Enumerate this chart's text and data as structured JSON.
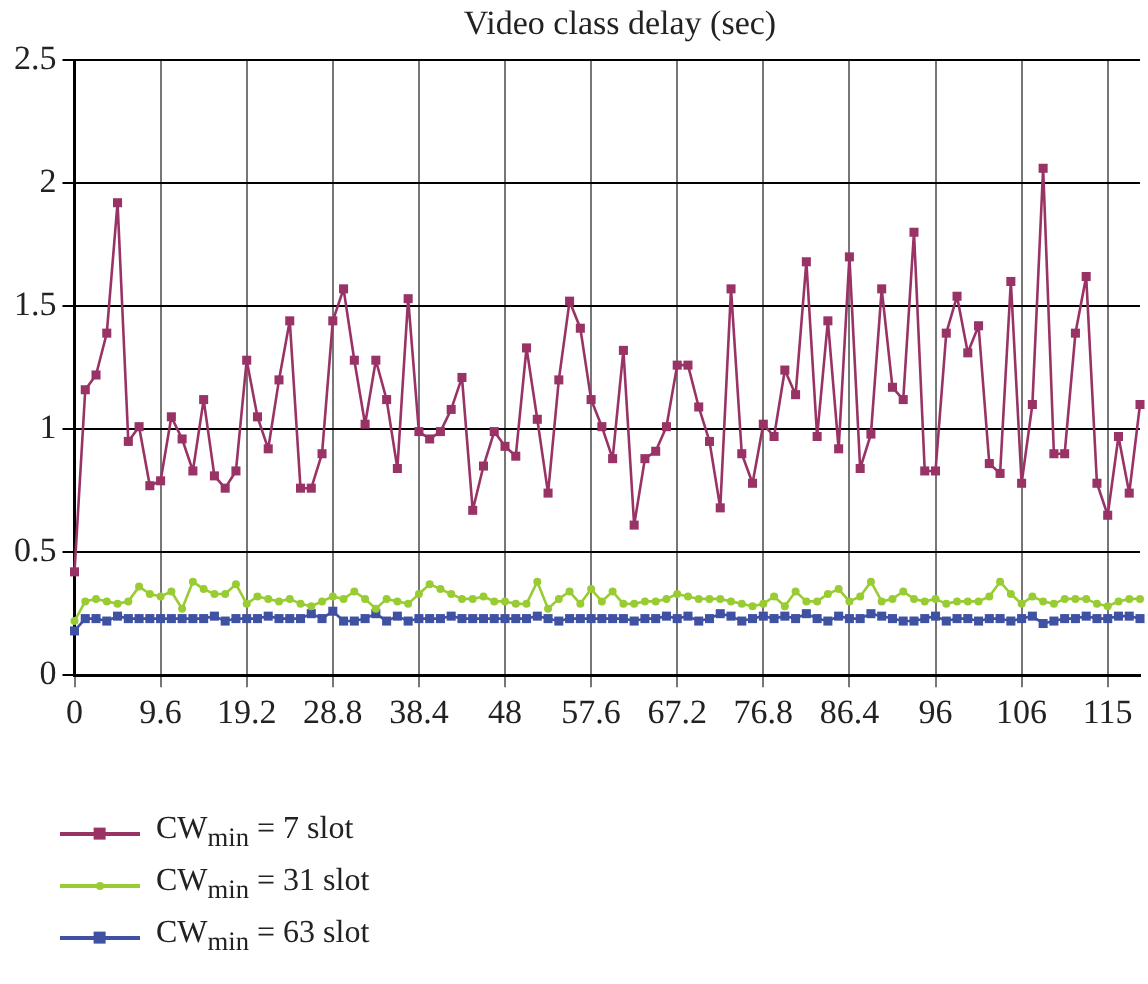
{
  "chart_data": {
    "type": "line",
    "title": "Video class delay (sec)",
    "x": [
      0,
      1.2,
      2.4,
      3.6,
      4.8,
      6,
      7.2,
      8.4,
      9.6,
      10.8,
      12,
      13.2,
      14.4,
      15.6,
      16.8,
      18,
      19.2,
      20.4,
      21.6,
      22.8,
      24,
      25.2,
      26.4,
      27.6,
      28.8,
      30,
      31.2,
      32.4,
      33.6,
      34.8,
      36,
      37.2,
      38.4,
      39.6,
      40.8,
      42,
      43.2,
      44.4,
      45.6,
      46.8,
      48,
      49.2,
      50.4,
      51.6,
      52.8,
      54,
      55.2,
      56.4,
      57.6,
      58.8,
      60,
      61.2,
      62.4,
      63.6,
      64.8,
      66,
      67.2,
      68.4,
      69.6,
      70.8,
      72,
      73.2,
      74.4,
      75.6,
      76.8,
      78,
      79.2,
      80.4,
      81.6,
      82.8,
      84,
      85.2,
      86.4,
      87.6,
      88.8,
      90,
      91.2,
      92.4,
      93.6,
      94.8,
      96,
      97.2,
      98.4,
      99.6,
      100.8,
      102,
      103.2,
      104.4,
      105.6,
      106.8,
      108,
      109.2,
      110.4,
      111.6,
      112.8,
      114,
      115.2,
      116.4,
      117.6,
      118.8
    ],
    "series": [
      {
        "name": "CW$_{min}$ = 7 slot",
        "color": "#993366",
        "marker": "square",
        "values": [
          0.42,
          1.16,
          1.22,
          1.39,
          1.92,
          0.95,
          1.01,
          0.77,
          0.79,
          1.05,
          0.96,
          0.83,
          1.12,
          0.81,
          0.76,
          0.83,
          1.28,
          1.05,
          0.92,
          1.2,
          1.44,
          0.76,
          0.76,
          0.9,
          1.44,
          1.57,
          1.28,
          1.02,
          1.28,
          1.12,
          0.84,
          1.53,
          0.99,
          0.96,
          0.99,
          1.08,
          1.21,
          0.67,
          0.85,
          0.99,
          0.93,
          0.89,
          1.33,
          1.04,
          0.74,
          1.2,
          1.52,
          1.41,
          1.12,
          1.01,
          0.88,
          1.32,
          0.61,
          0.88,
          0.91,
          1.01,
          1.26,
          1.26,
          1.09,
          0.95,
          0.68,
          1.57,
          0.9,
          0.78,
          1.02,
          0.97,
          1.24,
          1.14,
          1.68,
          0.97,
          1.44,
          0.92,
          1.7,
          0.84,
          0.98,
          1.57,
          1.17,
          1.12,
          1.8,
          0.83,
          0.83,
          1.39,
          1.54,
          1.31,
          1.42,
          0.86,
          0.82,
          1.6,
          0.78,
          1.1,
          2.06,
          0.9,
          0.9,
          1.39,
          1.62,
          0.78,
          0.65,
          0.97,
          0.74,
          1.1
        ]
      },
      {
        "name": "CW$_{min}$ = 31 slot",
        "color": "#99cc33",
        "marker": "circle",
        "values": [
          0.22,
          0.3,
          0.31,
          0.3,
          0.29,
          0.3,
          0.36,
          0.33,
          0.32,
          0.34,
          0.27,
          0.38,
          0.35,
          0.33,
          0.33,
          0.37,
          0.29,
          0.32,
          0.31,
          0.3,
          0.31,
          0.29,
          0.28,
          0.3,
          0.32,
          0.31,
          0.34,
          0.31,
          0.27,
          0.31,
          0.3,
          0.29,
          0.33,
          0.37,
          0.35,
          0.33,
          0.31,
          0.31,
          0.32,
          0.3,
          0.3,
          0.29,
          0.29,
          0.38,
          0.27,
          0.31,
          0.34,
          0.29,
          0.35,
          0.3,
          0.34,
          0.29,
          0.29,
          0.3,
          0.3,
          0.31,
          0.33,
          0.32,
          0.31,
          0.31,
          0.31,
          0.3,
          0.29,
          0.28,
          0.29,
          0.32,
          0.28,
          0.34,
          0.3,
          0.3,
          0.33,
          0.35,
          0.3,
          0.32,
          0.38,
          0.3,
          0.31,
          0.34,
          0.31,
          0.3,
          0.31,
          0.29,
          0.3,
          0.3,
          0.3,
          0.32,
          0.38,
          0.33,
          0.29,
          0.32,
          0.3,
          0.29,
          0.31,
          0.31,
          0.31,
          0.29,
          0.28,
          0.3,
          0.31,
          0.31
        ]
      },
      {
        "name": "CW$_{min}$ = 63 slot",
        "color": "#3f51a3",
        "marker": "square",
        "values": [
          0.18,
          0.23,
          0.23,
          0.22,
          0.24,
          0.23,
          0.23,
          0.23,
          0.23,
          0.23,
          0.23,
          0.23,
          0.23,
          0.24,
          0.22,
          0.23,
          0.23,
          0.23,
          0.24,
          0.23,
          0.23,
          0.23,
          0.25,
          0.23,
          0.26,
          0.22,
          0.22,
          0.23,
          0.25,
          0.22,
          0.24,
          0.22,
          0.23,
          0.23,
          0.23,
          0.24,
          0.23,
          0.23,
          0.23,
          0.23,
          0.23,
          0.23,
          0.23,
          0.24,
          0.23,
          0.22,
          0.23,
          0.23,
          0.23,
          0.23,
          0.23,
          0.23,
          0.22,
          0.23,
          0.23,
          0.24,
          0.23,
          0.24,
          0.22,
          0.23,
          0.25,
          0.24,
          0.22,
          0.23,
          0.24,
          0.23,
          0.24,
          0.23,
          0.25,
          0.23,
          0.22,
          0.24,
          0.23,
          0.23,
          0.25,
          0.24,
          0.23,
          0.22,
          0.22,
          0.23,
          0.24,
          0.22,
          0.23,
          0.23,
          0.22,
          0.23,
          0.23,
          0.22,
          0.23,
          0.24,
          0.21,
          0.22,
          0.23,
          0.23,
          0.24,
          0.23,
          0.23,
          0.24,
          0.24,
          0.23
        ]
      }
    ],
    "xlim": [
      0,
      118.8
    ],
    "xticks": [
      0,
      9.6,
      19.2,
      28.8,
      38.4,
      48,
      57.6,
      67.2,
      76.8,
      86.4,
      96,
      {
        "value": 105.6,
        "label": "106"
      },
      {
        "value": 115.2,
        "label": "115"
      }
    ],
    "ylim": [
      0,
      2.5
    ],
    "yticks": [
      0,
      0.5,
      1,
      1.5,
      2,
      2.5
    ],
    "grid": true,
    "legend": "bottom"
  }
}
